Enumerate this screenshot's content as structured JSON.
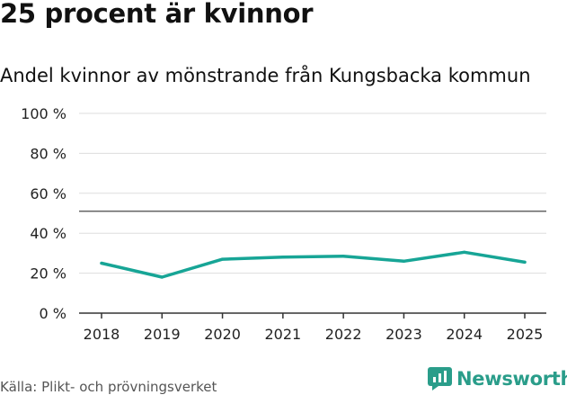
{
  "header": {
    "title": "25 procent är kvinnor",
    "subtitle": "Andel kvinnor av mönstrande från Kungsbacka kommun"
  },
  "footer": {
    "source": "Källa: Plikt- och prövningsverket",
    "brand": "Newsworthy"
  },
  "colors": {
    "line": "#17a596",
    "grid": "#dddddd",
    "reference": "#666666",
    "axis": "#333333",
    "brand": "#2a9d8a"
  },
  "chart_data": {
    "type": "line",
    "title": "25 procent är kvinnor",
    "subtitle": "Andel kvinnor av mönstrande från Kungsbacka kommun",
    "xlabel": "",
    "ylabel": "",
    "x": [
      "2018",
      "2019",
      "2020",
      "2021",
      "2022",
      "2023",
      "2024",
      "2025"
    ],
    "series": [
      {
        "name": "Andel kvinnor",
        "values": [
          25,
          18,
          27,
          28,
          28.5,
          26,
          30.5,
          25.5
        ]
      }
    ],
    "ylim": [
      0,
      100
    ],
    "yticks": [
      0,
      20,
      40,
      60,
      80,
      100
    ],
    "ytick_labels": [
      "0 %",
      "20 %",
      "40 %",
      "60 %",
      "80 %",
      "100 %"
    ],
    "reference_line": 51,
    "grid": true
  }
}
